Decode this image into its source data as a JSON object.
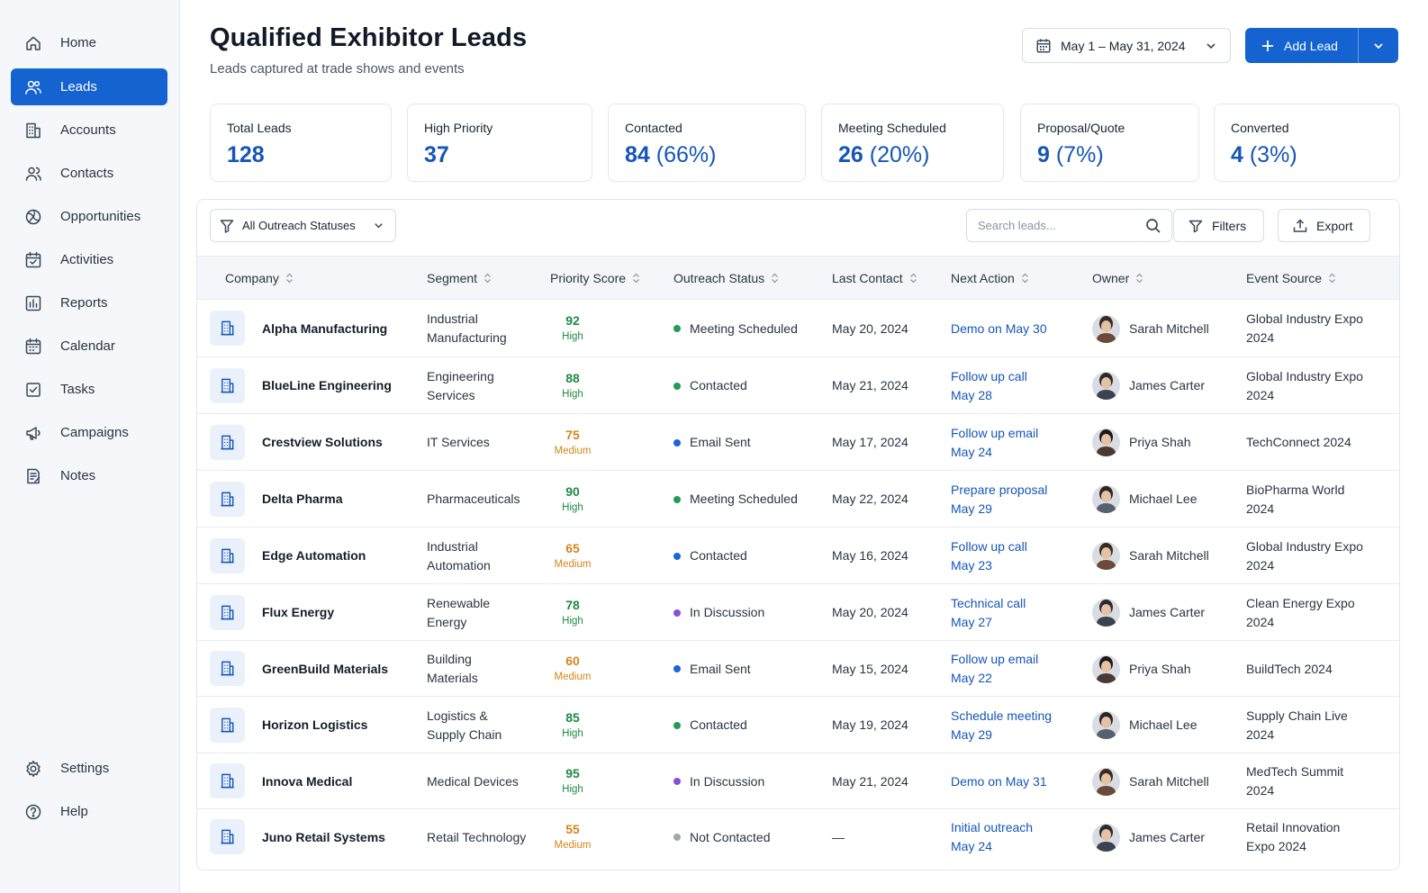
{
  "sidebar": {
    "items": [
      {
        "label": "Home",
        "icon": "home-icon",
        "active": false
      },
      {
        "label": "Leads",
        "icon": "users-icon",
        "active": true
      },
      {
        "label": "Accounts",
        "icon": "building-icon",
        "active": false
      },
      {
        "label": "Contacts",
        "icon": "contacts-icon",
        "active": false
      },
      {
        "label": "Opportunities",
        "icon": "target-icon",
        "active": false
      },
      {
        "label": "Activities",
        "icon": "calendar-check-icon",
        "active": false
      },
      {
        "label": "Reports",
        "icon": "bar-chart-icon",
        "active": false
      },
      {
        "label": "Calendar",
        "icon": "calendar-icon",
        "active": false
      },
      {
        "label": "Tasks",
        "icon": "checkbox-icon",
        "active": false
      },
      {
        "label": "Campaigns",
        "icon": "megaphone-icon",
        "active": false
      },
      {
        "label": "Notes",
        "icon": "note-icon",
        "active": false
      }
    ],
    "bottom": [
      {
        "label": "Settings",
        "icon": "gear-icon"
      },
      {
        "label": "Help",
        "icon": "help-circle-icon"
      }
    ]
  },
  "header": {
    "title": "Qualified Exhibitor Leads",
    "subtitle": "Leads captured at trade shows and events",
    "date_range": "May 1 – May 31, 2024",
    "add_lead_label": "Add Lead"
  },
  "stats": [
    {
      "label": "Total Leads",
      "value": "128",
      "pct": ""
    },
    {
      "label": "High Priority",
      "value": "37",
      "pct": ""
    },
    {
      "label": "Contacted",
      "value": "84",
      "pct": "(66%)"
    },
    {
      "label": "Meeting Scheduled",
      "value": "26",
      "pct": "(20%)"
    },
    {
      "label": "Proposal/Quote",
      "value": "9",
      "pct": "(7%)"
    },
    {
      "label": "Converted",
      "value": "4",
      "pct": "(3%)"
    }
  ],
  "toolbar": {
    "status_filter": "All Outreach Statuses",
    "search_placeholder": "Search leads...",
    "filters_label": "Filters",
    "export_label": "Export"
  },
  "table": {
    "columns": [
      "Company",
      "Segment",
      "Priority Score",
      "Outreach Status",
      "Last Contact",
      "Next Action",
      "Owner",
      "Event Source"
    ],
    "rows": [
      {
        "company": "Alpha Manufacturing",
        "segment": [
          "Industrial",
          "Manufacturing"
        ],
        "score": "92",
        "tier": "High",
        "status": "Meeting Scheduled",
        "status_color": "#1f9d55",
        "last_contact": "May 20, 2024",
        "next_action": [
          "Demo on May 30"
        ],
        "owner": "Sarah Mitchell",
        "source": [
          "Global Industry Expo",
          "2024"
        ]
      },
      {
        "company": "BlueLine Engineering",
        "segment": [
          "Engineering",
          "Services"
        ],
        "score": "88",
        "tier": "High",
        "status": "Contacted",
        "status_color": "#1f9d55",
        "last_contact": "May 21, 2024",
        "next_action": [
          "Follow up call",
          "May 28"
        ],
        "owner": "James Carter",
        "source": [
          "Global Industry Expo",
          "2024"
        ]
      },
      {
        "company": "Crestview Solutions",
        "segment": [
          "IT Services"
        ],
        "score": "75",
        "tier": "Medium",
        "status": "Email Sent",
        "status_color": "#1a66d6",
        "last_contact": "May 17, 2024",
        "next_action": [
          "Follow up email",
          "May 24"
        ],
        "owner": "Priya Shah",
        "source": [
          "TechConnect 2024"
        ]
      },
      {
        "company": "Delta Pharma",
        "segment": [
          "Pharmaceuticals"
        ],
        "score": "90",
        "tier": "High",
        "status": "Meeting Scheduled",
        "status_color": "#1f9d55",
        "last_contact": "May 22, 2024",
        "next_action": [
          "Prepare proposal",
          "May 29"
        ],
        "owner": "Michael Lee",
        "source": [
          "BioPharma World",
          "2024"
        ]
      },
      {
        "company": "Edge Automation",
        "segment": [
          "Industrial",
          "Automation"
        ],
        "score": "65",
        "tier": "Medium",
        "status": "Contacted",
        "status_color": "#1a66d6",
        "last_contact": "May 16, 2024",
        "next_action": [
          "Follow up call",
          "May 23"
        ],
        "owner": "Sarah Mitchell",
        "source": [
          "Global Industry Expo",
          "2024"
        ]
      },
      {
        "company": "Flux Energy",
        "segment": [
          "Renewable",
          "Energy"
        ],
        "score": "78",
        "tier": "High",
        "status": "In Discussion",
        "status_color": "#8b4fd6",
        "last_contact": "May 20, 2024",
        "next_action": [
          "Technical call",
          "May 27"
        ],
        "owner": "James Carter",
        "source": [
          "Clean Energy Expo",
          "2024"
        ]
      },
      {
        "company": "GreenBuild Materials",
        "segment": [
          "Building",
          "Materials"
        ],
        "score": "60",
        "tier": "Medium",
        "status": "Email Sent",
        "status_color": "#1a66d6",
        "last_contact": "May 15, 2024",
        "next_action": [
          "Follow up email",
          "May 22"
        ],
        "owner": "Priya Shah",
        "source": [
          "BuildTech 2024"
        ]
      },
      {
        "company": "Horizon Logistics",
        "segment": [
          "Logistics &",
          "Supply Chain"
        ],
        "score": "85",
        "tier": "High",
        "status": "Contacted",
        "status_color": "#1f9d55",
        "last_contact": "May 19, 2024",
        "next_action": [
          "Schedule meeting",
          "May 29"
        ],
        "owner": "Michael Lee",
        "source": [
          "Supply Chain Live",
          "2024"
        ]
      },
      {
        "company": "Innova Medical",
        "segment": [
          "Medical Devices"
        ],
        "score": "95",
        "tier": "High",
        "status": "In Discussion",
        "status_color": "#8b4fd6",
        "last_contact": "May 21, 2024",
        "next_action": [
          "Demo on May 31"
        ],
        "owner": "Sarah Mitchell",
        "source": [
          "MedTech Summit",
          "2024"
        ]
      },
      {
        "company": "Juno Retail Systems",
        "segment": [
          "Retail Technology"
        ],
        "score": "55",
        "tier": "Medium",
        "status": "Not Contacted",
        "status_color": "#a0a7b2",
        "last_contact": "—",
        "next_action": [
          "Initial outreach",
          "May 24"
        ],
        "owner": "James Carter",
        "source": [
          "Retail Innovation",
          "Expo 2024"
        ]
      }
    ]
  },
  "colors": {
    "accent": "#1463d0",
    "high": "#1f8a43",
    "medium": "#d0881a"
  }
}
